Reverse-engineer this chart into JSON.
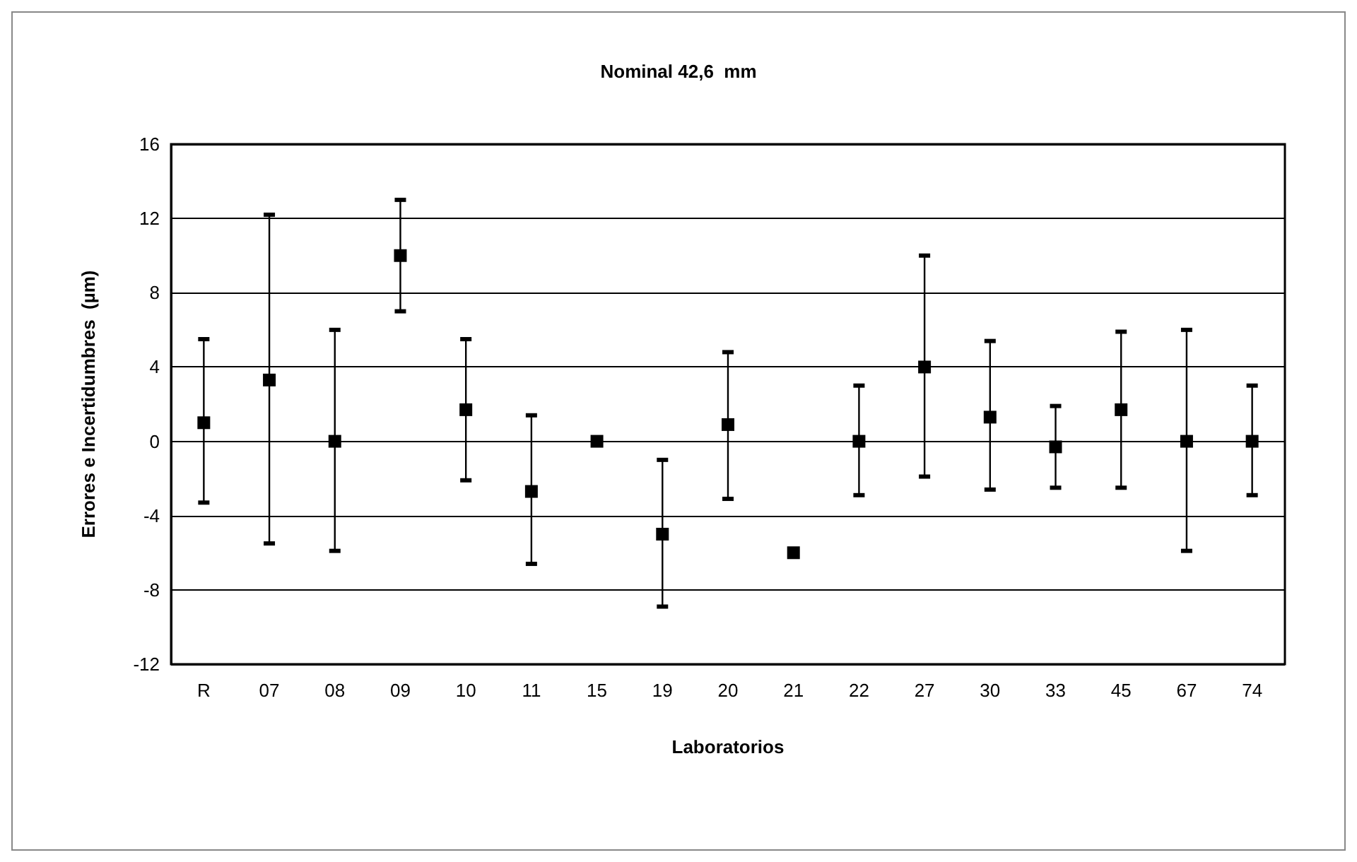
{
  "chart_data": {
    "type": "scatter",
    "title": "Nominal 42,6  mm",
    "xlabel": "Laboratorios",
    "ylabel": "Errores e Incertidumbres  (µm)",
    "categories": [
      "R",
      "07",
      "08",
      "09",
      "10",
      "11",
      "15",
      "19",
      "20",
      "21",
      "22",
      "27",
      "30",
      "33",
      "45",
      "67",
      "74"
    ],
    "values": [
      1.0,
      3.3,
      0,
      10.0,
      1.7,
      -2.7,
      0,
      -5.0,
      0.9,
      -6.0,
      0,
      4.0,
      1.3,
      -0.3,
      1.7,
      0,
      0
    ],
    "errors": [
      [
        -3.3,
        5.5
      ],
      [
        -5.5,
        12.2
      ],
      [
        -5.9,
        6.0
      ],
      [
        7.0,
        13.0
      ],
      [
        -2.1,
        5.5
      ],
      [
        -6.6,
        1.4
      ],
      null,
      [
        -8.9,
        -1.0
      ],
      [
        -3.1,
        4.8
      ],
      null,
      [
        -2.9,
        3.0
      ],
      [
        -1.9,
        10.0
      ],
      [
        -2.6,
        5.4
      ],
      [
        -2.5,
        1.9
      ],
      [
        -2.5,
        5.9
      ],
      [
        -5.9,
        6.0
      ],
      [
        -2.9,
        3.0
      ]
    ],
    "color": "#000000",
    "marker": "square",
    "grid": "y",
    "ylim": [
      -12,
      16
    ],
    "yticks": [
      -12,
      -8,
      -4,
      0,
      4,
      8,
      12,
      16
    ]
  }
}
